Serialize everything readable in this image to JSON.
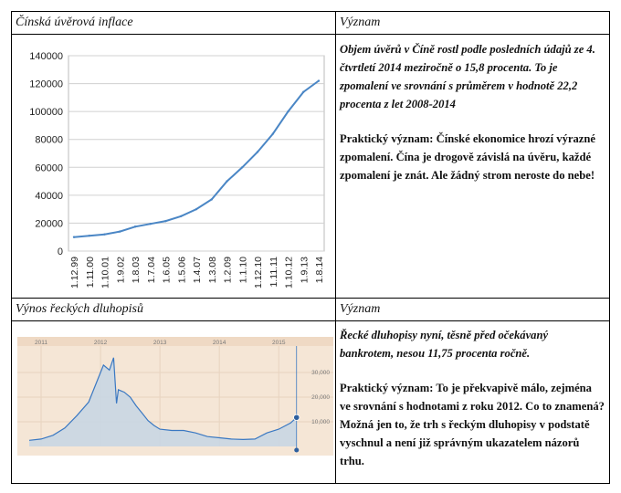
{
  "row1": {
    "header_left": "Čínská úvěrová inflace",
    "header_right": "Význam",
    "paragraph1": "Objem úvěrů v Číně rostl podle posledních údajů ze 4. čtvrtletí 2014 meziročně o 15,8 procenta. To je zpomalení ve srovnání s průměrem v hodnotě 22,2 procenta z let 2008-2014",
    "paragraph2": "Praktický význam: Čínské ekonomice hrozí výrazné zpomalení. Čína je drogově závislá na úvěru, každé zpomalení je znát. Ale žádný strom neroste do nebe!"
  },
  "row2": {
    "header_left": "Výnos řeckých dluhopisů",
    "header_right": "Význam",
    "paragraph1": "Řecké dluhopisy nyní, těsně před očekávaný bankrotem, nesou 11,75 procenta ročně.",
    "paragraph2": "Praktický význam: To je překvapivě málo, zejména ve srovnání s hodnotami z roku 2012. Co to znamená? Možná jen to, že trh s řeckým dluhopisy v podstatě vyschnul a není již správným ukazatelem názorů trhu."
  },
  "chart_data": [
    {
      "type": "line",
      "title": "",
      "line_color": "#4a86c5",
      "categories": [
        "1.12.99",
        "1.11.00",
        "1.10.01",
        "1.9.02",
        "1.8.03",
        "1.7.04",
        "1.6.05",
        "1.5.06",
        "1.4.07",
        "1.3.08",
        "1.2.09",
        "1.1.10",
        "1.12.10",
        "1.11.11",
        "1.10.12",
        "1.9.13",
        "1.8.14"
      ],
      "values": [
        10000,
        11000,
        12000,
        14000,
        17500,
        19500,
        21500,
        25000,
        30000,
        37000,
        50000,
        60000,
        71000,
        84000,
        100000,
        114000,
        122000
      ],
      "y_ticks": [
        "0",
        "20000",
        "40000",
        "60000",
        "80000",
        "100000",
        "120000",
        "140000"
      ],
      "ylim": [
        0,
        140000
      ],
      "grid": true
    },
    {
      "type": "area",
      "title": "",
      "line_color": "#3a78c2",
      "fill_color": "#c9d6e3",
      "background": "#f5e6d6",
      "x_ticks": [
        "2011",
        "2012",
        "2013",
        "2014",
        "2015"
      ],
      "y_ticks": [
        "10,000",
        "20,000",
        "30,000"
      ],
      "x": [
        2010.8,
        2011.0,
        2011.2,
        2011.4,
        2011.6,
        2011.8,
        2011.95,
        2012.05,
        2012.15,
        2012.22,
        2012.27,
        2012.3,
        2012.4,
        2012.5,
        2012.6,
        2012.7,
        2012.8,
        2012.9,
        2013.0,
        2013.2,
        2013.4,
        2013.6,
        2013.8,
        2014.0,
        2014.2,
        2014.4,
        2014.6,
        2014.8,
        2015.0,
        2015.2,
        2015.3
      ],
      "values": [
        2.5,
        3.0,
        4.5,
        7.5,
        12.5,
        18.0,
        27.0,
        33.0,
        31.0,
        36.0,
        17.5,
        23.0,
        22.0,
        20.0,
        16.5,
        13.5,
        10.5,
        8.5,
        7.0,
        6.5,
        6.5,
        5.5,
        4.0,
        3.5,
        3.0,
        2.8,
        3.0,
        5.5,
        7.0,
        9.5,
        11.75
      ],
      "ylim": [
        0,
        40
      ]
    }
  ]
}
